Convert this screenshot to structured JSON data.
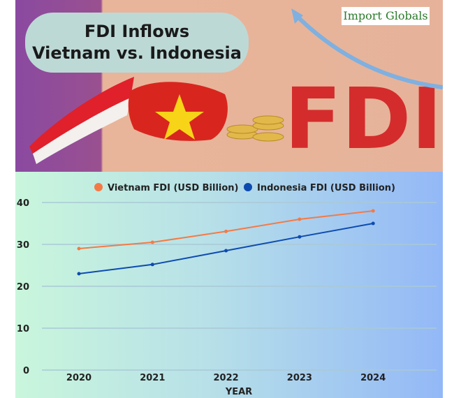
{
  "banner": {
    "title_line1": "FDI Inflows",
    "title_line2": "Vietnam vs. Indonesia",
    "logo": "Import Globals",
    "fdi_graphic_text": "FDI"
  },
  "colors": {
    "vietnam": "#f47a45",
    "indonesia": "#0d4bb0"
  },
  "chart_data": {
    "type": "line",
    "title": "",
    "xlabel": "YEAR",
    "ylabel": "",
    "categories": [
      "2020",
      "2021",
      "2022",
      "2023",
      "2024"
    ],
    "ylim": [
      0,
      40
    ],
    "yticks": [
      "0",
      "10",
      "20",
      "30",
      "40"
    ],
    "grid": true,
    "legend": "top",
    "series": [
      {
        "name": "Vietnam FDI (USD Billion)",
        "values": [
          29,
          30.5,
          33.1,
          36,
          38
        ]
      },
      {
        "name": "Indonesia FDI (USD Billion)",
        "values": [
          23,
          25.2,
          28.5,
          31.8,
          35
        ]
      }
    ]
  }
}
